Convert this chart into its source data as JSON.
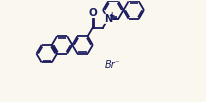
{
  "background_color": "#faf8ee",
  "line_color": "#1a1a5e",
  "line_width": 1.3,
  "font_size": 6.5,
  "figsize": [
    2.06,
    1.02
  ],
  "dpi": 100,
  "xlim": [
    0,
    10
  ],
  "ylim": [
    0,
    5
  ]
}
